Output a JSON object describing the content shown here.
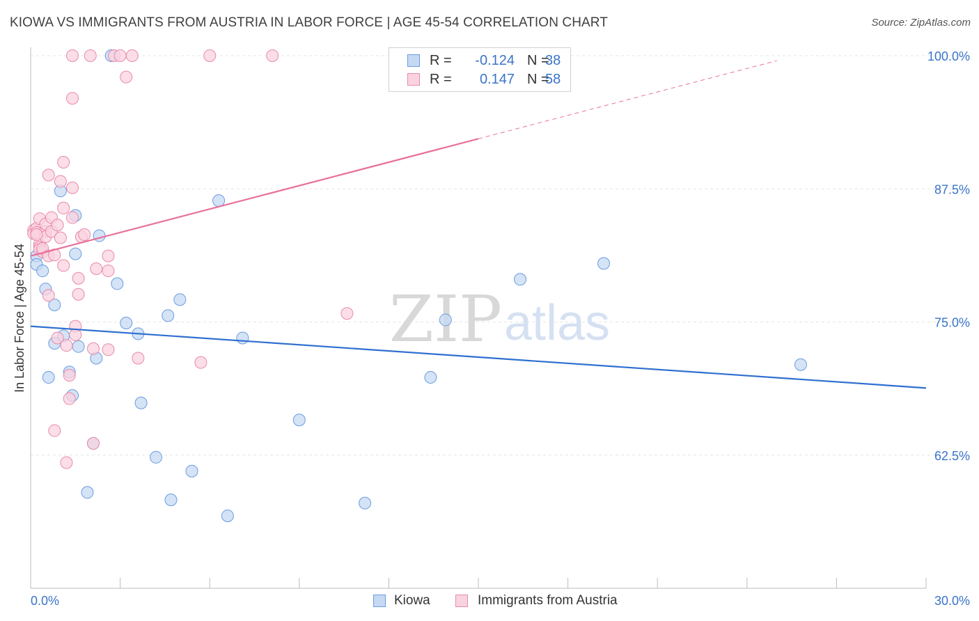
{
  "title": "KIOWA VS IMMIGRANTS FROM AUSTRIA IN LABOR FORCE | AGE 45-54 CORRELATION CHART",
  "source": "Source: ZipAtlas.com",
  "watermark": {
    "zip": "ZIP",
    "atlas": "atlas"
  },
  "legend": {
    "rows": [
      {
        "r_label": "R =",
        "r_value": "-0.124",
        "n_label": "N =",
        "n_value": "38",
        "color": "#a8c6ee",
        "border": "#6a9be0"
      },
      {
        "r_label": "R =",
        "r_value": "0.147",
        "n_label": "N =",
        "n_value": "58",
        "color": "#f6c0d2",
        "border": "#e88aa8"
      }
    ]
  },
  "bottom_legend": [
    {
      "label": "Kiowa",
      "color": "#c5d9f3",
      "border": "#6a9be0"
    },
    {
      "label": "Immigrants from Austria",
      "color": "#f9d3e0",
      "border": "#e88aa8"
    }
  ],
  "chart_data": {
    "type": "scatter",
    "title": "KIOWA VS IMMIGRANTS FROM AUSTRIA IN LABOR FORCE | AGE 45-54 CORRELATION CHART",
    "xlabel": "",
    "ylabel": "In Labor Force | Age 45-54",
    "xlim": [
      0,
      30
    ],
    "ylim": [
      50,
      100
    ],
    "x_tick_labels": [
      "0.0%",
      "30.0%"
    ],
    "y_ticks": [
      62.5,
      75.0,
      87.5,
      100.0
    ],
    "y_tick_labels": [
      "62.5%",
      "75.0%",
      "87.5%",
      "100.0%"
    ],
    "grid": true,
    "series": [
      {
        "name": "Kiowa",
        "color": "#6a9be0",
        "fill": "#c5d9f3",
        "points": [
          [
            0.2,
            81.2
          ],
          [
            0.2,
            80.4
          ],
          [
            0.4,
            79.8
          ],
          [
            0.5,
            78.1
          ],
          [
            0.6,
            69.8
          ],
          [
            0.8,
            76.6
          ],
          [
            0.8,
            73.0
          ],
          [
            1.0,
            87.3
          ],
          [
            1.1,
            73.7
          ],
          [
            1.3,
            70.3
          ],
          [
            1.4,
            68.1
          ],
          [
            1.5,
            85.0
          ],
          [
            1.5,
            81.4
          ],
          [
            1.6,
            72.7
          ],
          [
            1.9,
            59.0
          ],
          [
            2.1,
            63.6
          ],
          [
            2.2,
            71.6
          ],
          [
            2.3,
            83.1
          ],
          [
            2.7,
            100.0
          ],
          [
            2.9,
            78.6
          ],
          [
            3.2,
            74.9
          ],
          [
            3.6,
            73.9
          ],
          [
            3.7,
            67.4
          ],
          [
            4.2,
            62.3
          ],
          [
            4.6,
            75.6
          ],
          [
            4.7,
            58.3
          ],
          [
            5.0,
            77.1
          ],
          [
            5.4,
            61.0
          ],
          [
            6.3,
            86.4
          ],
          [
            6.6,
            56.8
          ],
          [
            7.1,
            73.5
          ],
          [
            9.0,
            65.8
          ],
          [
            11.2,
            58.0
          ],
          [
            13.4,
            69.8
          ],
          [
            13.9,
            75.2
          ],
          [
            16.4,
            79.0
          ],
          [
            19.2,
            80.5
          ],
          [
            25.8,
            71.0
          ]
        ]
      },
      {
        "name": "Immigrants from Austria",
        "color": "#e88aa8",
        "fill": "#f9d3e0",
        "points": [
          [
            0.1,
            83.6
          ],
          [
            0.1,
            83.3
          ],
          [
            0.2,
            83.8
          ],
          [
            0.2,
            83.4
          ],
          [
            0.3,
            82.3
          ],
          [
            0.3,
            84.7
          ],
          [
            0.3,
            82.0
          ],
          [
            0.3,
            81.8
          ],
          [
            0.4,
            81.6
          ],
          [
            0.4,
            81.9
          ],
          [
            0.5,
            83.5
          ],
          [
            0.5,
            83.0
          ],
          [
            0.5,
            84.2
          ],
          [
            0.6,
            77.5
          ],
          [
            0.6,
            81.2
          ],
          [
            0.6,
            88.8
          ],
          [
            0.7,
            84.8
          ],
          [
            0.7,
            83.5
          ],
          [
            0.8,
            64.8
          ],
          [
            0.8,
            81.3
          ],
          [
            0.9,
            73.5
          ],
          [
            0.9,
            84.1
          ],
          [
            1.0,
            88.2
          ],
          [
            1.0,
            82.9
          ],
          [
            1.1,
            90.0
          ],
          [
            1.1,
            85.7
          ],
          [
            1.1,
            80.3
          ],
          [
            1.2,
            61.8
          ],
          [
            1.2,
            72.8
          ],
          [
            1.3,
            67.8
          ],
          [
            1.3,
            70.0
          ],
          [
            1.4,
            87.6
          ],
          [
            1.4,
            84.8
          ],
          [
            1.5,
            74.6
          ],
          [
            1.5,
            73.8
          ],
          [
            1.4,
            96.0
          ],
          [
            1.4,
            100.0
          ],
          [
            1.6,
            77.6
          ],
          [
            1.6,
            79.1
          ],
          [
            1.7,
            83.0
          ],
          [
            1.8,
            83.2
          ],
          [
            2.0,
            100.0
          ],
          [
            2.1,
            72.5
          ],
          [
            2.1,
            63.6
          ],
          [
            2.2,
            80.0
          ],
          [
            2.6,
            81.2
          ],
          [
            2.6,
            79.8
          ],
          [
            2.6,
            72.4
          ],
          [
            2.8,
            100.0
          ],
          [
            3.0,
            100.0
          ],
          [
            3.2,
            98.0
          ],
          [
            3.4,
            100.0
          ],
          [
            3.6,
            71.6
          ],
          [
            5.7,
            71.2
          ],
          [
            6.0,
            100.0
          ],
          [
            8.1,
            100.0
          ],
          [
            10.6,
            75.8
          ],
          [
            0.2,
            83.2
          ]
        ]
      }
    ],
    "trend_lines": [
      {
        "series": "Kiowa",
        "color": "#2f6fd0",
        "x": [
          0,
          30
        ],
        "y": [
          74.6,
          68.8
        ],
        "dashed_x": null
      },
      {
        "series": "Immigrants from Austria",
        "color": "#e8709a",
        "x": [
          0,
          15
        ],
        "y": [
          81.2,
          92.2
        ],
        "dashed_x": [
          15,
          25
        ]
      }
    ]
  }
}
